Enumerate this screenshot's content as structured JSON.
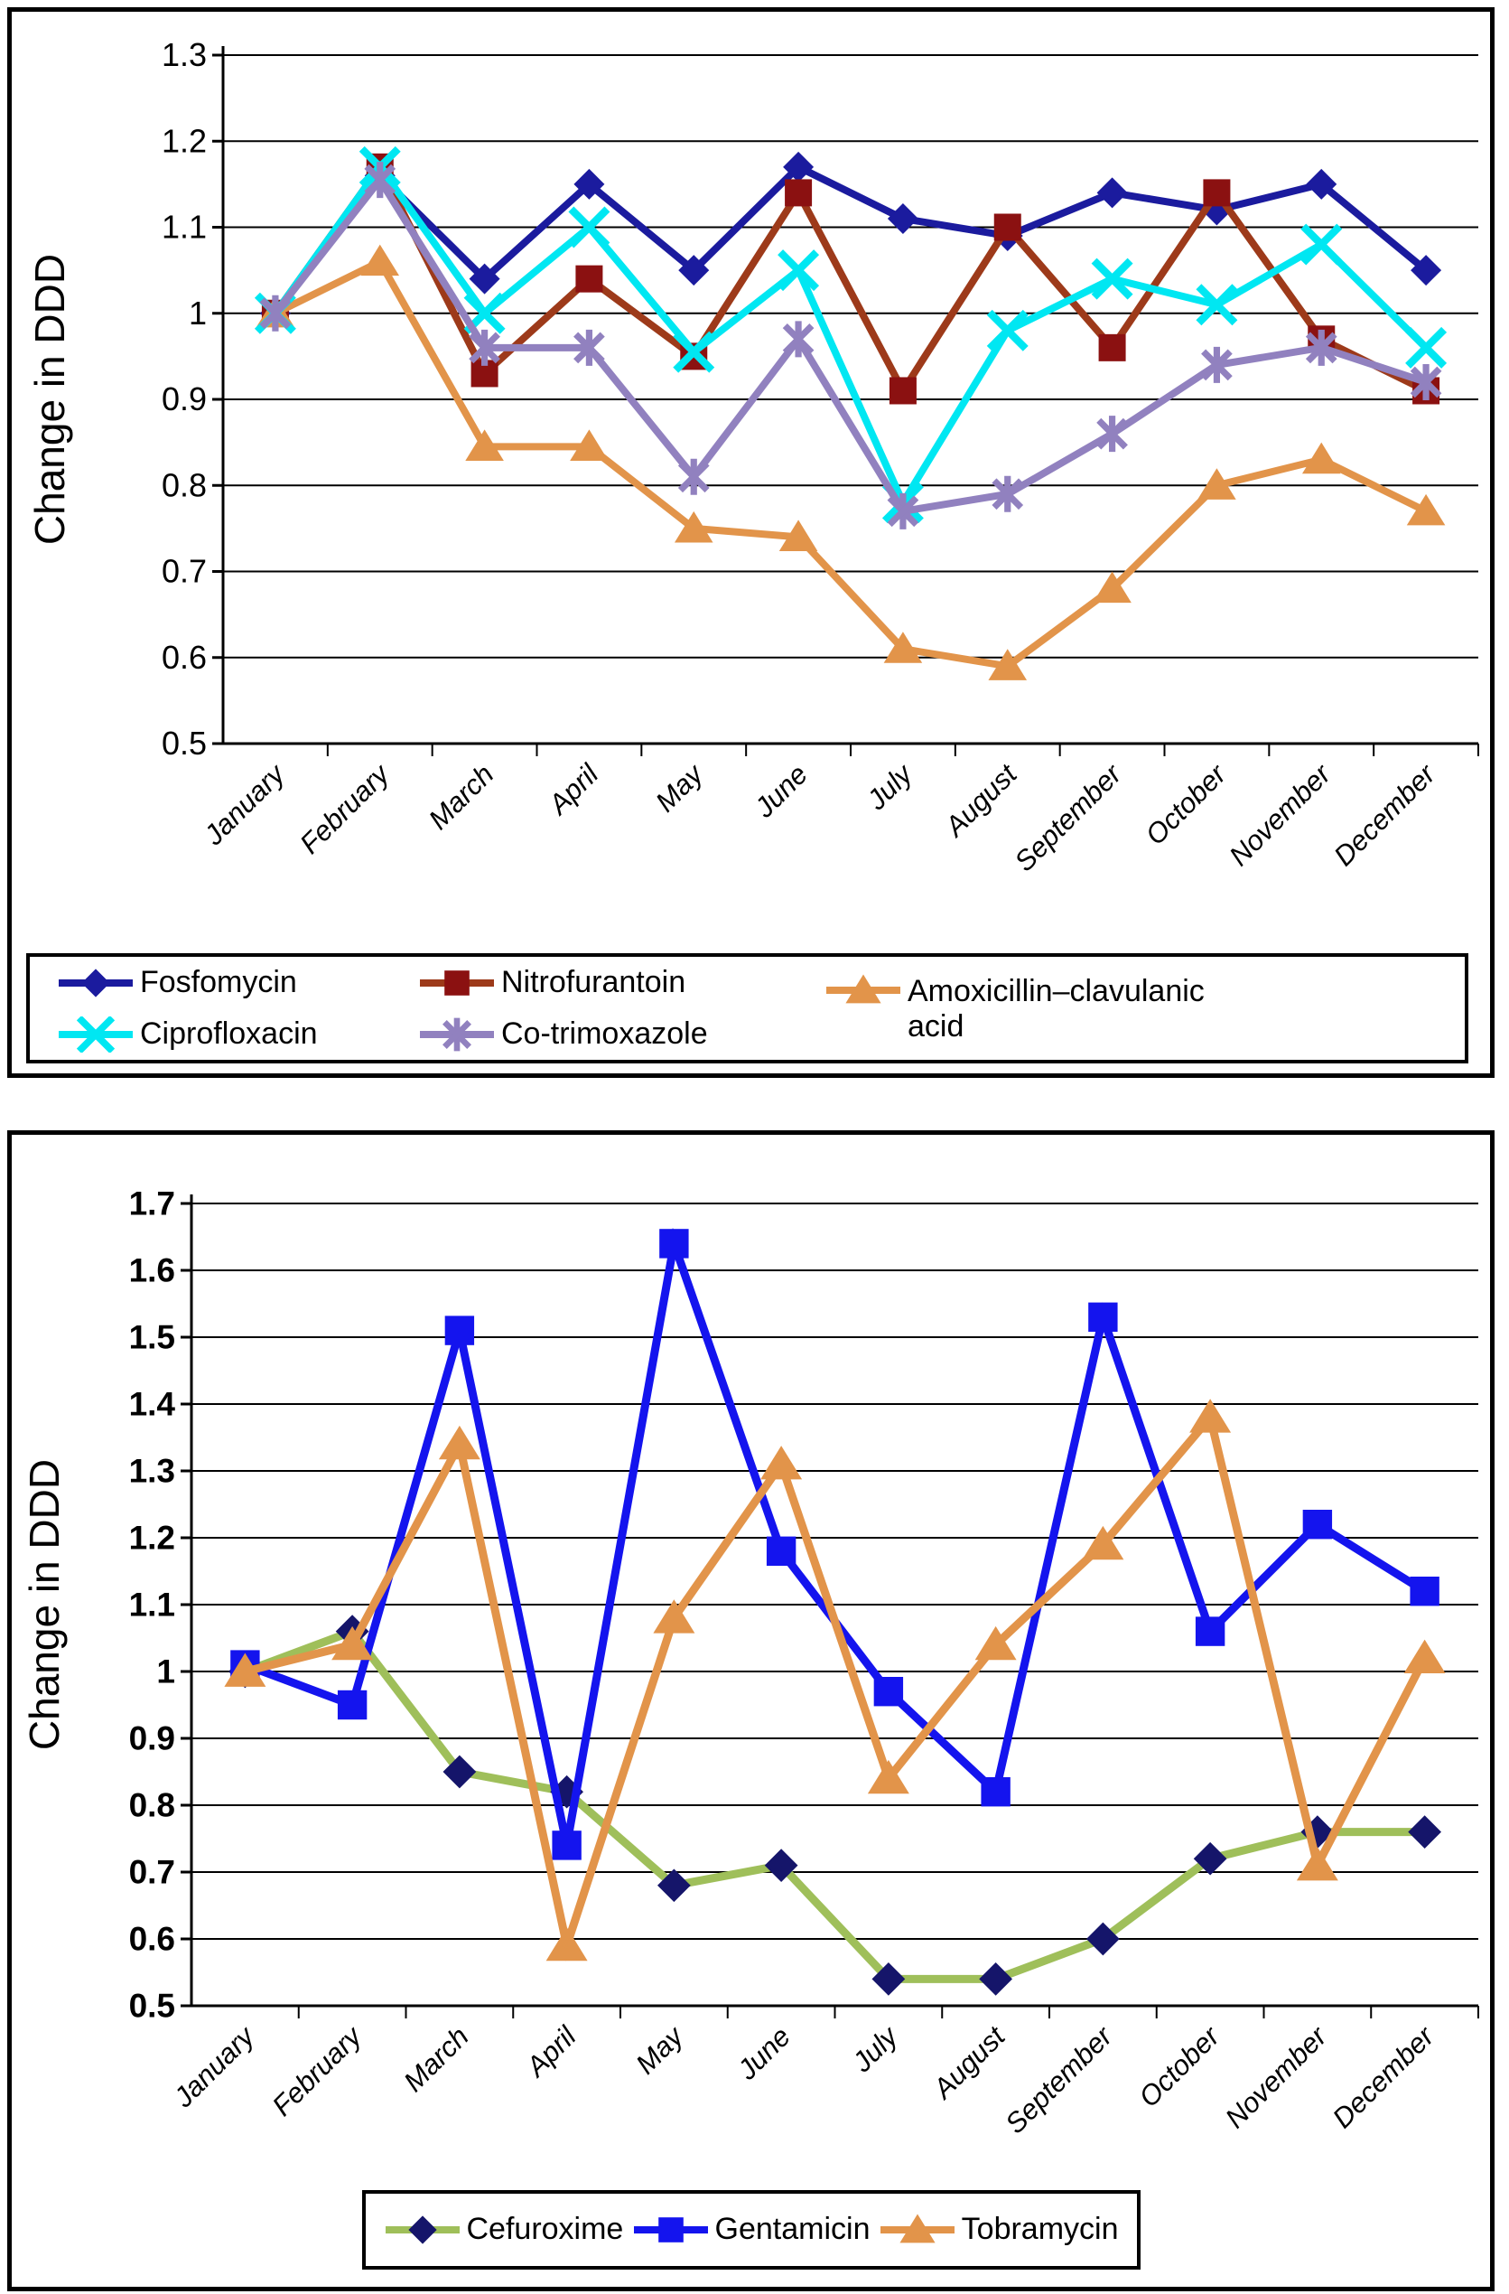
{
  "figure": {
    "panel_count": 2
  },
  "chart_data": [
    {
      "type": "line",
      "title": "",
      "ylabel": "Change in DDD",
      "xlabel": "",
      "ylim": [
        0.5,
        1.3
      ],
      "ystep": 0.1,
      "grid": true,
      "legend_position": "bottom-box",
      "ytick_labels": [
        "1.3",
        "1.2",
        "1.1",
        "1",
        "0.9",
        "0.8",
        "0.7",
        "0.6",
        "0.5"
      ],
      "categories": [
        "January",
        "February",
        "March",
        "April",
        "May",
        "June",
        "July",
        "August",
        "September",
        "October",
        "November",
        "December"
      ],
      "series": [
        {
          "name": "Fosfomycin",
          "marker": "diamond",
          "color": "#1b1b9e",
          "marker_color": "#1b1b9e",
          "values": [
            1.0,
            1.16,
            1.04,
            1.15,
            1.05,
            1.17,
            1.11,
            1.09,
            1.14,
            1.12,
            1.15,
            1.05
          ]
        },
        {
          "name": "Nitrofurantoin",
          "marker": "square",
          "color": "#9d3a1a",
          "marker_color": "#8b1111",
          "values": [
            1.0,
            1.17,
            0.93,
            1.04,
            0.95,
            1.14,
            0.91,
            1.1,
            0.96,
            1.14,
            0.97,
            0.91
          ]
        },
        {
          "name": "Amoxicillin–clavulanic acid",
          "marker": "triangle",
          "color": "#e2944a",
          "marker_color": "#e2944a",
          "values": [
            1.0,
            1.06,
            0.845,
            0.845,
            0.75,
            0.74,
            0.61,
            0.59,
            0.68,
            0.8,
            0.83,
            0.77
          ]
        },
        {
          "name": "Ciprofloxacin",
          "marker": "x",
          "color": "#00e7f2",
          "marker_color": "#00e7f2",
          "values": [
            1.0,
            1.17,
            1.0,
            1.1,
            0.955,
            1.05,
            0.78,
            0.98,
            1.04,
            1.01,
            1.08,
            0.96
          ]
        },
        {
          "name": "Co-trimoxazole",
          "marker": "asterisk",
          "color": "#9181bf",
          "marker_color": "#9181bf",
          "values": [
            1.0,
            1.155,
            0.96,
            0.96,
            0.81,
            0.97,
            0.77,
            0.79,
            0.86,
            0.94,
            0.96,
            0.92
          ]
        }
      ]
    },
    {
      "type": "line",
      "title": "",
      "ylabel": "Change in DDD",
      "xlabel": "",
      "ylim": [
        0.5,
        1.7
      ],
      "ystep": 0.1,
      "grid": true,
      "legend_position": "bottom-box",
      "ytick_labels": [
        "1.7",
        "1.6",
        "1.5",
        "1.4",
        "1.3",
        "1.2",
        "1.1",
        "1",
        "0.9",
        "0.8",
        "0.7",
        "0.6",
        "0.5"
      ],
      "categories": [
        "January",
        "February",
        "March",
        "April",
        "May",
        "June",
        "July",
        "August",
        "September",
        "October",
        "November",
        "December"
      ],
      "series": [
        {
          "name": "Cefuroxime",
          "marker": "diamond",
          "color": "#9fbf5a",
          "marker_color": "#15156a",
          "values": [
            1.0,
            1.06,
            0.85,
            0.82,
            0.68,
            0.71,
            0.54,
            0.54,
            0.6,
            0.72,
            0.76,
            0.76
          ]
        },
        {
          "name": "Gentamicin",
          "marker": "square",
          "color": "#1414ee",
          "marker_color": "#1414ee",
          "values": [
            1.01,
            0.95,
            1.51,
            0.74,
            1.64,
            1.18,
            0.97,
            0.82,
            1.53,
            1.06,
            1.22,
            1.12
          ]
        },
        {
          "name": "Tobramycin",
          "marker": "triangle",
          "color": "#e2944a",
          "marker_color": "#e2944a",
          "values": [
            1.0,
            1.04,
            1.34,
            0.59,
            1.08,
            1.31,
            0.84,
            1.04,
            1.19,
            1.38,
            0.71,
            1.02
          ]
        }
      ]
    }
  ]
}
